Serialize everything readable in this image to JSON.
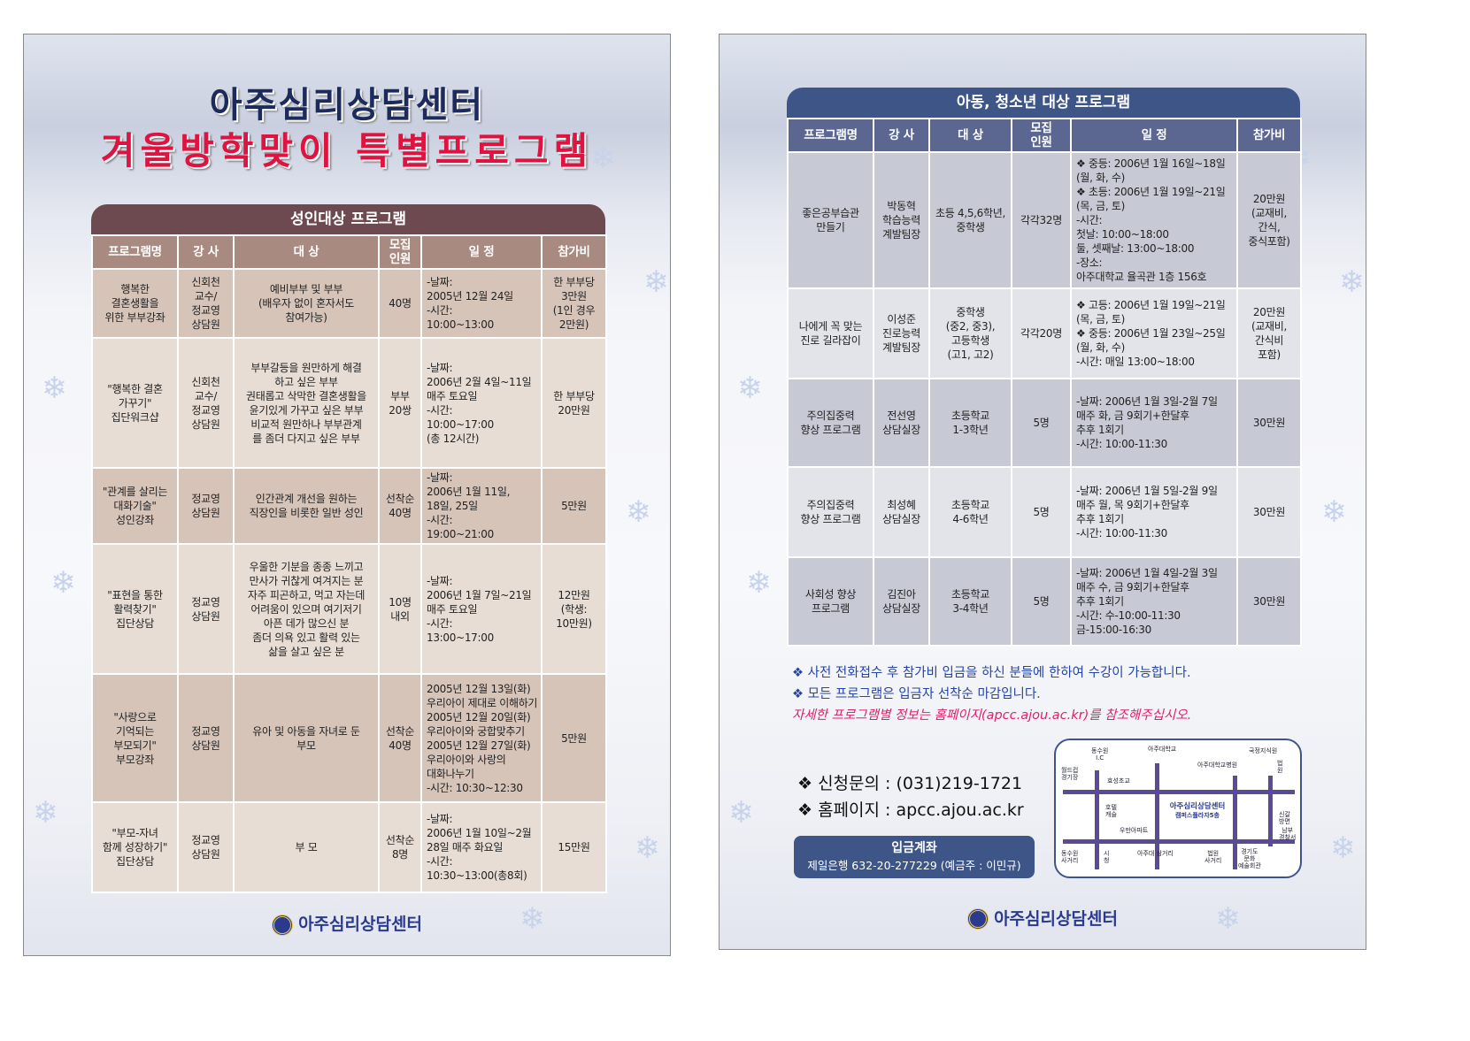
{
  "left": {
    "title_line1": "아주심리상담센터",
    "title_line2": "겨울방학맞이 특별프로그램",
    "table_title": "성인대상 프로그램",
    "headers": [
      "프로그램명",
      "강 사",
      "대 상",
      "모집\n인원",
      "일 정",
      "참가비"
    ],
    "rows": [
      [
        "행복한\n결혼생활을\n위한 부부강좌",
        "신회천\n교수/\n정교영\n상담원",
        "예비부부 및 부부\n(배우자 없이 혼자서도\n참여가능)",
        "40명",
        "-날짜:\n   2005년 12월 24일\n-시간:\n   10:00~13:00",
        "한 부부당\n3만원\n(1인 경우\n2만원)"
      ],
      [
        "\"행복한 결혼\n가꾸기\"\n집단워크샵",
        "신회천\n교수/\n정교영\n상담원",
        "부부갈등을 원만하게 해결\n하고 싶은 부부\n권태롭고 삭막한 결혼생활을\n윤기있게 가꾸고 싶은 부부\n비교적 원만하나 부부관계\n를 좀더 다지고 싶은 부부",
        "부부\n20쌍",
        "-날짜:\n   2006년 2월 4일~11일\n   매주 토요일\n-시간:\n   10:00~17:00\n   (총 12시간)",
        "한 부부당\n20만원"
      ],
      [
        "\"관계를 살리는\n대화기술\"\n성인강좌",
        "정교영\n상담원",
        "인간관계 개선을 원하는\n직장인을 비롯한 일반 성인",
        "선착순\n40명",
        "-날짜:\n   2006년 1월 11일,\n   18일, 25일\n-시간:\n   19:00~21:00",
        "5만원"
      ],
      [
        "\"표현을 통한\n활력찾기\"\n집단상담",
        "정교영\n상담원",
        "우울한 기분을 종종 느끼고\n만사가 귀찮게 여겨지는 분\n자주 피곤하고, 먹고 자는데\n어려움이 있으며 여기저기\n아픈 데가 많으신 분\n좀더 의욕 있고 활력 있는\n삶을 살고 싶은 분",
        "10명\n내외",
        "-날짜:\n   2006년 1월 7일~21일\n   매주 토요일\n-시간:\n   13:00~17:00",
        "12만원\n(학생:\n10만원)"
      ],
      [
        "\"사랑으로\n기억되는\n부모되기\"\n부모강좌",
        "정교영\n상담원",
        "유아 및 아동을 자녀로 둔\n부모",
        "선착순\n40명",
        "2005년 12월 13일(화)\n우리아이 제대로 이해하기\n2005년 12월 20일(화)\n우리아이와 궁합맞추기\n2005년 12월 27일(화)\n우리아이와 사랑의\n대화나누기\n-시간: 10:30~12:30",
        "5만원"
      ],
      [
        "\"부모-자녀\n함께 성장하기\"\n집단상담",
        "정교영\n상담원",
        "부 모",
        "선착순\n8명",
        "-날짜:\n   2006년 1월 10일~2월\n   28일 매주 화요일\n-시간:\n   10:30~13:00(총8회)",
        "15만원"
      ]
    ],
    "logo": "아주심리상담센터"
  },
  "right": {
    "table_title": "아동, 청소년 대상 프로그램",
    "headers": [
      "프로그램명",
      "강 사",
      "대 상",
      "모집\n인원",
      "일 정",
      "참가비"
    ],
    "rows": [
      [
        "좋은공부습관\n만들기",
        "박동혁\n학습능력\n계발팀장",
        "초등 4,5,6학년,\n중학생",
        "각각32명",
        "❖ 중등: 2006년 1월 16일~18일\n          (월, 화, 수)\n❖ 초등: 2006년 1월 19일~21일\n          (목, 금, 토)\n-시간:\n   첫날: 10:00~18:00\n   둘, 셋째날: 13:00~18:00\n-장소:\n   아주대학교 율곡관 1층 156호",
        "20만원\n(교재비,\n간식,\n중식포함)"
      ],
      [
        "나에게 꼭 맞는\n진로 길라잡이",
        "이성준\n진로능력\n계발팀장",
        "중학생\n(중2, 중3),\n고등학생\n(고1, 고2)",
        "각각20명",
        "❖ 고등: 2006년 1월 19일~21일\n          (목, 금, 토)\n❖ 중등: 2006년 1월 23일~25일\n          (월, 화, 수)\n-시간: 매일 13:00~18:00",
        "20만원\n(교재비,\n간식비\n포함)"
      ],
      [
        "주의집중력\n향상 프로그램",
        "전선영\n상담실장",
        "초등학교\n1-3학년",
        "5명",
        "-날짜: 2006년 1월 3일-2월 7일\n          매주 화, 금 9회기+한달후\n          추후 1회기\n-시간: 10:00-11:30",
        "30만원"
      ],
      [
        "주의집중력\n향상 프로그램",
        "최성혜\n상담실장",
        "초등학교\n4-6학년",
        "5명",
        "-날짜: 2006년 1월 5일-2월 9일\n          매주 월, 목 9회기+한달후\n          추후 1회기\n-시간: 10:00-11:30",
        "30만원"
      ],
      [
        "사회성 향상\n프로그램",
        "김진아\n상담실장",
        "초등학교\n3-4학년",
        "5명",
        "-날짜: 2006년 1월 4일-2월 3일\n          매주 수, 금 9회기+한달후\n          추후 1회기\n-시간: 수-10:00-11:30\n          금-15:00-16:30",
        "30만원"
      ]
    ],
    "notes": [
      "❖ 사전 전화접수 후 참가비 입금을 하신 분들에 한하여 수강이 가능합니다.",
      "❖ 모든 프로그램은 입금자 선착순 마감입니다."
    ],
    "notice": "자세한 프로그램별 정보는 홈페이지(apcc.ajou.ac.kr)를 참조해주십시오.",
    "contact": {
      "phone_label": "❖ 신청문의 :",
      "phone": "(031)219-1721",
      "web_label": "❖ 홈페이지 :",
      "web": "apcc.ajou.ac.kr"
    },
    "bank": {
      "title": "입금계좌",
      "account": "제일은행 632-20-277229 (예금주 : 이민규)"
    },
    "map": {
      "labels": [
        "동수원\nI.C",
        "아주대학교",
        "아주대학교병원",
        "법\n원",
        "월드컵\n경기장",
        "효성초교",
        "호텔\n캐슬",
        "우만아파트",
        "국정지식원",
        "신갈\n방면",
        "남부\n경찰서",
        "동수원\n사거리",
        "시\n청",
        "아주대 삼거리",
        "법원\n사거리",
        "경기도\n문화\n예술회관"
      ],
      "center_name": "아주심리상담센터",
      "center_floor": "캠퍼스플라자5층"
    },
    "logo": "아주심리상담센터"
  },
  "colors": {
    "adult_accent": "#6d4a50",
    "youth_accent": "#3e5587",
    "title_red": "#e0123f",
    "title_navy": "#1c2a5c"
  }
}
